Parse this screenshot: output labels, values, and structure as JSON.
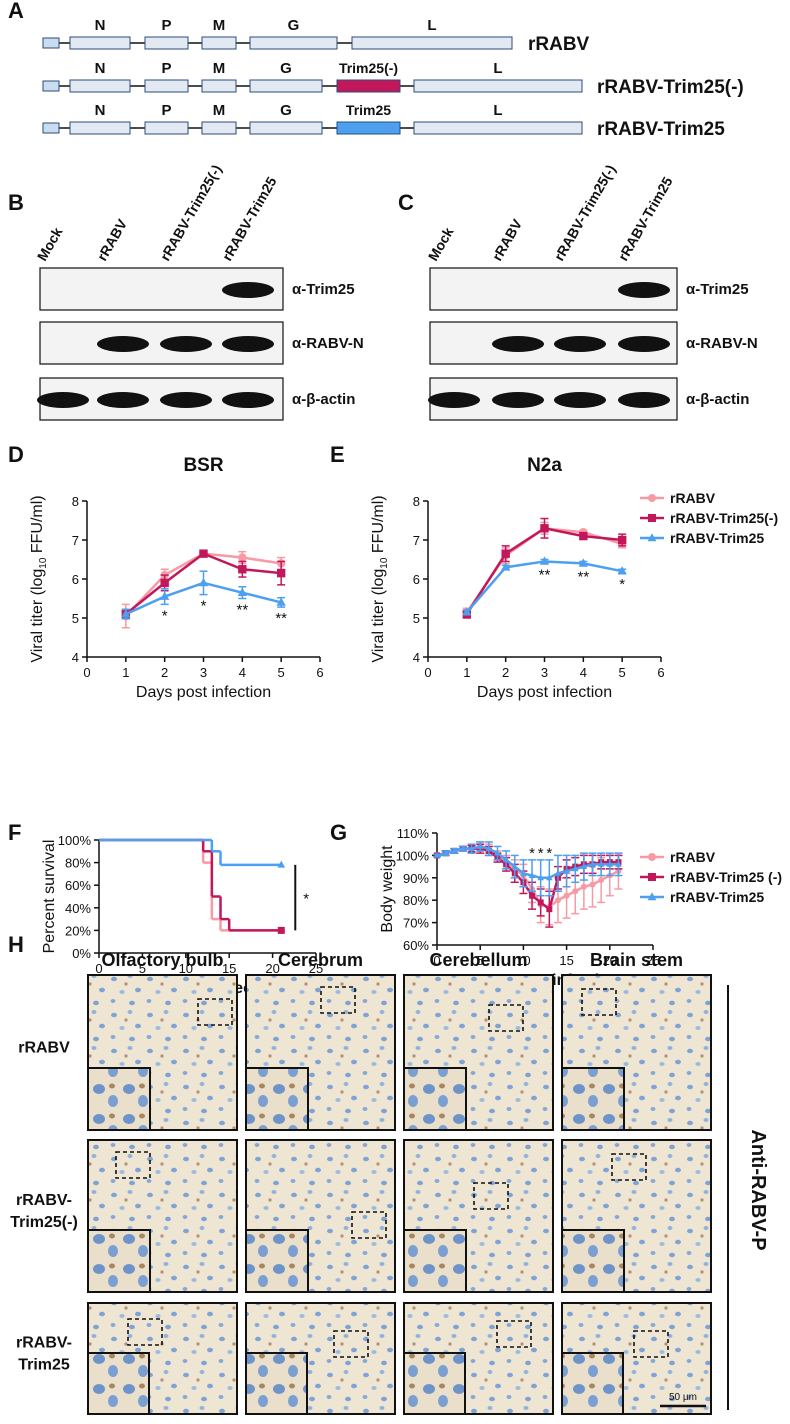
{
  "panel_labels": [
    "A",
    "B",
    "C",
    "D",
    "E",
    "F",
    "G",
    "H"
  ],
  "genome": {
    "constructs": [
      {
        "name": "rRABV",
        "genes": [
          "N",
          "P",
          "M",
          "G",
          "L"
        ]
      },
      {
        "name": "rRABV-Trim25(-)",
        "genes": [
          "N",
          "P",
          "M",
          "G",
          "Trim25(-)",
          "L"
        ]
      },
      {
        "name": "rRABV-Trim25",
        "genes": [
          "N",
          "P",
          "M",
          "G",
          "Trim25",
          "L"
        ]
      }
    ]
  },
  "blots": [
    {
      "lanes": [
        "Mock",
        "rRABV",
        "rRABV-Trim25(-)",
        "rRABV-Trim25"
      ],
      "antibodies": [
        "α-Trim25",
        "α-RABV-N",
        "α-β-actin"
      ]
    },
    {
      "lanes": [
        "Mock",
        "rRABV",
        "rRABV-Trim25(-)",
        "rRABV-Trim25"
      ],
      "antibodies": [
        "α-Trim25",
        "α-RABV-N",
        "α-β-actin"
      ]
    }
  ],
  "histology": {
    "columns": [
      "Olfactory bulb",
      "Cerebrum",
      "Cerebellum",
      "Brain stem"
    ],
    "rows": [
      [
        "rRABV"
      ],
      [
        "rRABV-",
        "Trim25(-)"
      ],
      [
        "rRABV-",
        "Trim25"
      ]
    ],
    "stain": "Anti-RABV-P",
    "scale_bar": "50 µm"
  },
  "chart_data": [
    {
      "type": "line",
      "title": "BSR",
      "xlabel": "Days post infection",
      "ylabel": [
        "Viral titer (log",
        "10",
        " FFU/ml)"
      ],
      "x": [
        1,
        2,
        3,
        4,
        5
      ],
      "xlim": [
        0,
        6
      ],
      "xticks": [
        0,
        1,
        2,
        3,
        4,
        5,
        6
      ],
      "ylim": [
        4,
        8
      ],
      "yticks": [
        4,
        5,
        6,
        7,
        8
      ],
      "series": [
        {
          "color": "#f79aa3",
          "marker": "circle",
          "values": [
            5.05,
            6.1,
            6.65,
            6.55,
            6.4
          ],
          "errors": [
            0.3,
            0.15,
            0.08,
            0.15,
            0.15
          ]
        },
        {
          "color": "#c2185b",
          "marker": "square",
          "values": [
            5.1,
            5.9,
            6.65,
            6.25,
            6.15
          ],
          "errors": [
            0.12,
            0.2,
            0.08,
            0.2,
            0.3
          ]
        },
        {
          "color": "#4d9ff0",
          "marker": "triangle",
          "values": [
            5.1,
            5.55,
            5.9,
            5.65,
            5.4
          ],
          "errors": [
            0.12,
            0.2,
            0.3,
            0.15,
            0.12
          ]
        }
      ],
      "annotation_side": "below",
      "annotations": [
        {
          "x": 2,
          "text": "*"
        },
        {
          "x": 3,
          "text": "*"
        },
        {
          "x": 4,
          "text": "**"
        },
        {
          "x": 5,
          "text": "**"
        }
      ]
    },
    {
      "type": "line",
      "title": "N2a",
      "xlabel": "Days post infection",
      "ylabel": [
        "Viral titer (log",
        "10",
        " FFU/ml)"
      ],
      "x": [
        1,
        2,
        3,
        4,
        5
      ],
      "xlim": [
        0,
        6
      ],
      "xticks": [
        0,
        1,
        2,
        3,
        4,
        5,
        6
      ],
      "ylim": [
        4,
        8
      ],
      "yticks": [
        4,
        5,
        6,
        7,
        8
      ],
      "legend": "right",
      "series": [
        {
          "name": "rRABV",
          "color": "#f79aa3",
          "marker": "circle",
          "values": [
            5.15,
            6.6,
            7.3,
            7.2,
            6.9
          ],
          "errors": [
            0.1,
            0.2,
            0.15,
            0.05,
            0.1
          ]
        },
        {
          "name": "rRABV-Trim25(-)",
          "color": "#c2185b",
          "marker": "square",
          "values": [
            5.1,
            6.65,
            7.3,
            7.1,
            7.0
          ],
          "errors": [
            0.1,
            0.2,
            0.25,
            0.08,
            0.15
          ]
        },
        {
          "name": "rRABV-Trim25",
          "color": "#4d9ff0",
          "marker": "triangle",
          "values": [
            5.15,
            6.3,
            6.45,
            6.4,
            6.2
          ],
          "errors": [
            0.05,
            0.05,
            0.05,
            0.05,
            0.05
          ]
        }
      ],
      "annotation_side": "below",
      "annotations": [
        {
          "x": 3,
          "text": "**"
        },
        {
          "x": 4,
          "text": "**"
        },
        {
          "x": 5,
          "text": "*"
        }
      ]
    },
    {
      "type": "step",
      "xlabel": "Days post infection",
      "ylabel": "Percent survival",
      "xlim": [
        0,
        25
      ],
      "xticks": [
        0,
        5,
        10,
        15,
        20,
        25
      ],
      "ylim": [
        0,
        100
      ],
      "yticks": [
        {
          "value": 0,
          "label": "0%"
        },
        {
          "value": 20,
          "label": "20%"
        },
        {
          "value": 40,
          "label": "40%"
        },
        {
          "value": 60,
          "label": "60%"
        },
        {
          "value": 80,
          "label": "80%"
        },
        {
          "value": 100,
          "label": "100%"
        }
      ],
      "series": [
        {
          "color": "#f79aa3",
          "marker": "circle",
          "x": [
            0,
            12,
            13,
            14,
            21
          ],
          "values": [
            100,
            80,
            30,
            20,
            20
          ]
        },
        {
          "color": "#c2185b",
          "marker": "square",
          "x": [
            0,
            12,
            13,
            14,
            15,
            21
          ],
          "values": [
            100,
            90,
            50,
            30,
            20,
            20
          ]
        },
        {
          "color": "#4d9ff0",
          "marker": "triangle",
          "x": [
            0,
            13,
            14,
            21
          ],
          "values": [
            100,
            90,
            78,
            78
          ]
        }
      ],
      "annotations": [
        {
          "text": "*"
        }
      ]
    },
    {
      "type": "line",
      "xlabel": "Days post infection",
      "ylabel": "Body weight",
      "x": [
        0,
        1,
        2,
        3,
        4,
        5,
        6,
        7,
        8,
        9,
        10,
        11,
        12,
        13,
        14,
        15,
        16,
        17,
        18,
        19,
        20,
        21
      ],
      "xlim": [
        0,
        25
      ],
      "xticks": [
        0,
        5,
        10,
        15,
        20,
        25
      ],
      "ylim": [
        60,
        110
      ],
      "yticks": [
        {
          "value": 60,
          "label": "60%"
        },
        {
          "value": 70,
          "label": "70%"
        },
        {
          "value": 80,
          "label": "80%"
        },
        {
          "value": 90,
          "label": "90%"
        },
        {
          "value": 100,
          "label": "100%"
        },
        {
          "value": 110,
          "label": "110%"
        }
      ],
      "legend": "right",
      "series": [
        {
          "name": "rRABV",
          "color": "#f79aa3",
          "marker": "circle",
          "values": [
            100,
            101,
            102,
            103,
            103,
            104,
            103,
            100,
            97,
            94,
            91,
            85,
            78,
            77,
            80,
            82,
            84,
            86,
            87,
            89,
            91,
            93
          ],
          "errors": [
            0.5,
            1,
            1,
            1,
            1.5,
            2,
            2,
            2,
            3,
            4,
            5,
            6,
            8,
            8,
            10,
            10,
            10,
            10,
            10,
            10,
            9,
            8
          ]
        },
        {
          "name": "rRABV-Trim25 (-)",
          "color": "#c2185b",
          "marker": "square",
          "values": [
            100,
            101,
            102,
            103,
            103,
            103,
            102,
            99,
            96,
            92,
            88,
            82,
            79,
            76,
            90,
            94,
            95,
            96,
            96,
            97,
            97,
            97
          ],
          "errors": [
            0.5,
            1,
            1,
            1,
            1.5,
            2,
            2,
            2,
            3,
            4,
            5,
            6,
            6,
            8,
            5,
            4,
            4,
            4,
            4,
            3,
            3,
            3
          ]
        },
        {
          "name": "rRABV-Trim25",
          "color": "#4d9ff0",
          "marker": "triangle",
          "values": [
            100,
            101,
            102,
            103,
            103,
            104,
            103,
            101,
            98,
            95,
            92,
            91,
            90,
            90,
            92,
            93,
            94,
            95,
            96,
            96,
            96,
            96
          ],
          "errors": [
            0.5,
            1,
            1,
            1,
            2,
            2,
            3,
            3,
            4,
            5,
            6,
            7,
            8,
            8,
            8,
            7,
            6,
            6,
            5,
            5,
            5,
            5
          ]
        }
      ],
      "annotation_side": "above",
      "annotations": [
        {
          "x": 11,
          "text": "*"
        },
        {
          "x": 12,
          "text": "*"
        },
        {
          "x": 13,
          "text": "*"
        }
      ]
    }
  ]
}
